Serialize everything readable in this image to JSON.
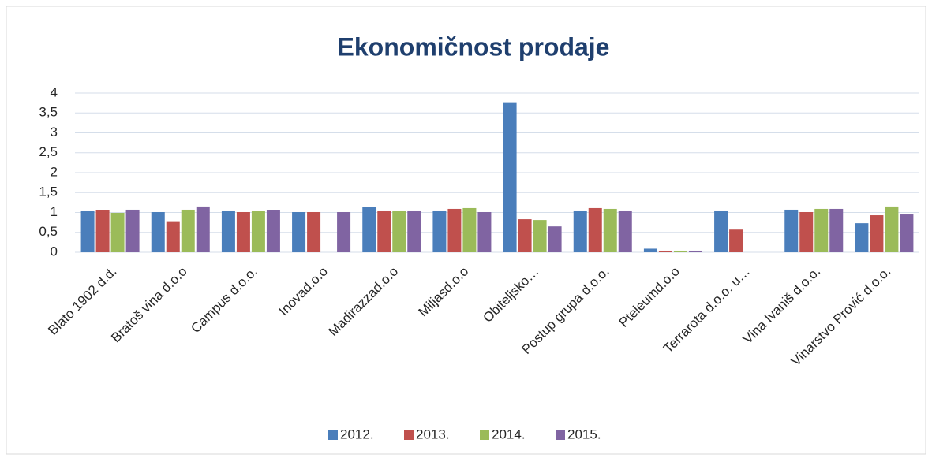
{
  "chart_data": {
    "type": "bar",
    "title": "Ekonomičnost prodaje",
    "categories": [
      "Blato 1902 d.d.",
      "Bratoš vina d.o.o",
      "Campus d.o.o.",
      "Inovad.o.o",
      "Madirazzad.o.o",
      "Miljasd.o.o",
      "Obiteljsko…",
      "Postup grupa d.o.o.",
      "Pteleumd.o.o",
      "Terrarota d.o.o. u…",
      "Vina Ivaniš d.o.o.",
      "Vinarstvo Prović d.o.o."
    ],
    "series": [
      {
        "name": "2012.",
        "color": "#4a7ebb",
        "values": [
          1.03,
          1.01,
          1.03,
          1.01,
          1.13,
          1.03,
          3.75,
          1.03,
          0.09,
          1.03,
          1.07,
          0.73
        ]
      },
      {
        "name": "2013.",
        "color": "#c0504d",
        "values": [
          1.05,
          0.78,
          1.01,
          1.01,
          1.03,
          1.09,
          0.83,
          1.11,
          0.04,
          0.57,
          1.01,
          0.93
        ]
      },
      {
        "name": "2014.",
        "color": "#9bbb59",
        "values": [
          0.99,
          1.07,
          1.03,
          null,
          1.03,
          1.11,
          0.81,
          1.09,
          0.04,
          null,
          1.09,
          1.15
        ]
      },
      {
        "name": "2015.",
        "color": "#8064a2",
        "values": [
          1.07,
          1.15,
          1.05,
          1.01,
          1.03,
          1.01,
          0.65,
          1.03,
          0.04,
          null,
          1.09,
          0.95
        ]
      }
    ],
    "ylim": [
      0,
      4
    ],
    "yticks": [
      0,
      {
        "value": 0.5,
        "label": "0,5"
      },
      1,
      {
        "value": 1.5,
        "label": "1,5"
      },
      2,
      {
        "value": 2.5,
        "label": "2,5"
      },
      3,
      {
        "value": 3.5,
        "label": "3,5"
      },
      4
    ],
    "grid": true,
    "legend": "bottom"
  }
}
